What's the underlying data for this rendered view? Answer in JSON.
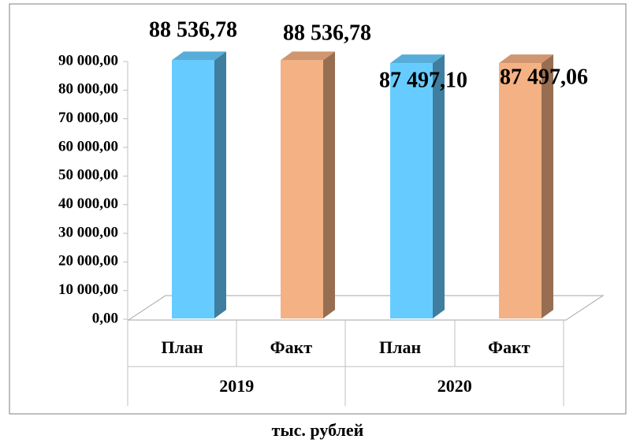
{
  "chart_data": {
    "type": "bar3d",
    "categories": [
      "План",
      "Факт",
      "План",
      "Факт"
    ],
    "groups": [
      "2019",
      "2020"
    ],
    "values": [
      88536.78,
      88536.78,
      87497.1,
      87497.06
    ],
    "value_labels": [
      "88 536,78",
      "88 536,78",
      "87 497,10",
      "87 497,06"
    ],
    "colors": [
      "#66ccff",
      "#f4b183",
      "#66ccff",
      "#f4b183"
    ],
    "ylim": [
      0,
      90000
    ],
    "yticks": [
      {
        "value": 0,
        "label": "0,00"
      },
      {
        "value": 10000,
        "label": "10 000,00"
      },
      {
        "value": 20000,
        "label": "20 000,00"
      },
      {
        "value": 30000,
        "label": "30 000,00"
      },
      {
        "value": 40000,
        "label": "40 000,00"
      },
      {
        "value": 50000,
        "label": "50 000,00"
      },
      {
        "value": 60000,
        "label": "60 000,00"
      },
      {
        "value": 70000,
        "label": "70 000,00"
      },
      {
        "value": 80000,
        "label": "80 000,00"
      },
      {
        "value": 90000,
        "label": "90 000,00"
      }
    ],
    "x_label": "тыс. рублей"
  }
}
